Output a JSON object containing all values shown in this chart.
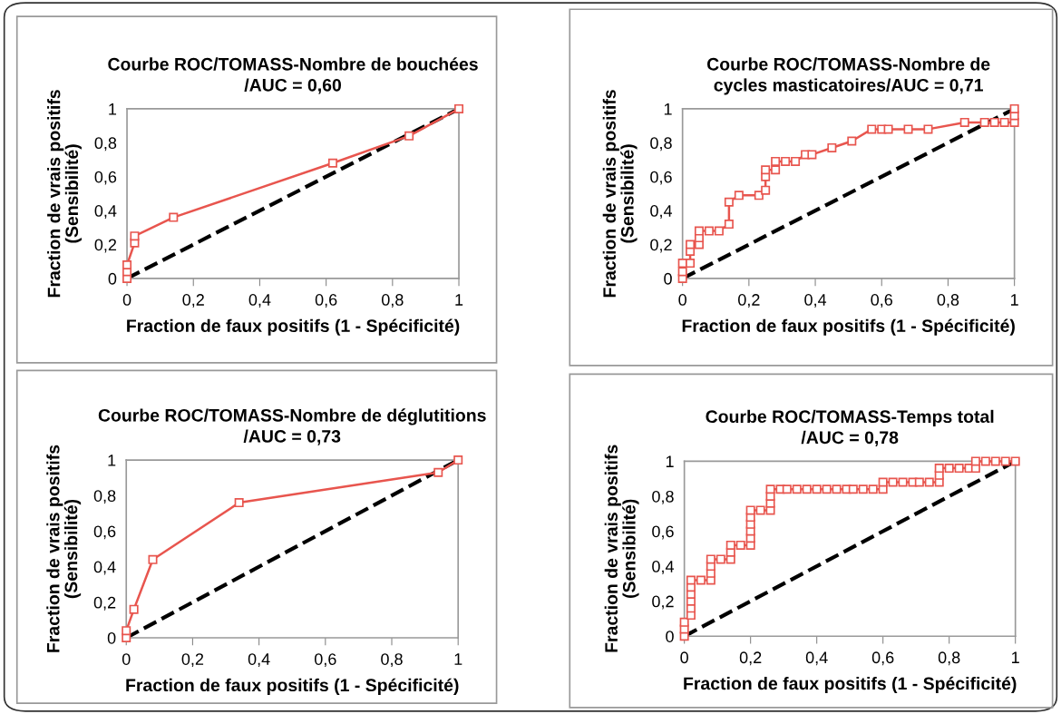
{
  "chart_data": [
    {
      "type": "line",
      "title": "Courbe ROC/TOMASS-Nombre de bouchées\n/AUC = 0,60",
      "xlabel": "Fraction de faux positifs (1 - Spécificité)",
      "ylabel": "Fraction de vrais positifs\n(Sensibilité)",
      "xlim": [
        0,
        1
      ],
      "ylim": [
        0,
        1
      ],
      "xticks": [
        0,
        {
          "value": 0.2,
          "label": "0,2"
        },
        {
          "value": 0.4,
          "label": "0,4"
        },
        {
          "value": 0.6,
          "label": "0,6"
        },
        {
          "value": 0.8,
          "label": "0,8"
        },
        1
      ],
      "yticks": [
        0,
        {
          "value": 0.2,
          "label": "0,2"
        },
        {
          "value": 0.4,
          "label": "0,4"
        },
        {
          "value": 0.6,
          "label": "0,6"
        },
        {
          "value": 0.8,
          "label": "0,8"
        },
        1
      ],
      "grid": false,
      "series": [
        {
          "color": "#e8554e",
          "marker": "square",
          "line_style": "solid",
          "x": [
            0,
            0,
            0,
            0.023,
            0.023,
            0.14,
            0.62,
            0.85,
            1
          ],
          "values": [
            0,
            0.04,
            0.08,
            0.21,
            0.25,
            0.36,
            0.68,
            0.84,
            1
          ]
        },
        {
          "color": "#000000",
          "marker": "none",
          "line_style": "dashed",
          "x": [
            0,
            1
          ],
          "values": [
            0,
            1
          ]
        }
      ]
    },
    {
      "type": "line",
      "title": "Courbe ROC/TOMASS-Nombre de\ncycles masticatoires/AUC = 0,71",
      "xlabel": "Fraction de faux positifs (1 - Spécificité)",
      "ylabel": "Fraction de vrais positifs\n(Sensibilité)",
      "xlim": [
        0,
        1
      ],
      "ylim": [
        0,
        1
      ],
      "xticks": [
        0,
        {
          "value": 0.2,
          "label": "0,2"
        },
        {
          "value": 0.4,
          "label": "0,4"
        },
        {
          "value": 0.6,
          "label": "0,6"
        },
        {
          "value": 0.8,
          "label": "0,8"
        },
        1
      ],
      "yticks": [
        0,
        {
          "value": 0.2,
          "label": "0,2"
        },
        {
          "value": 0.4,
          "label": "0,4"
        },
        {
          "value": 0.6,
          "label": "0,6"
        },
        {
          "value": 0.8,
          "label": "0,8"
        },
        1
      ],
      "grid": false,
      "series": [
        {
          "color": "#e8554e",
          "marker": "square",
          "line_style": "solid",
          "x": [
            0,
            0,
            0,
            0.023,
            0.023,
            0.023,
            0.05,
            0.05,
            0.05,
            0.08,
            0.11,
            0.14,
            0.14,
            0.17,
            0.23,
            0.25,
            0.25,
            0.25,
            0.28,
            0.28,
            0.31,
            0.34,
            0.37,
            0.39,
            0.45,
            0.51,
            0.57,
            0.6,
            0.62,
            0.68,
            0.74,
            0.85,
            0.91,
            0.94,
            0.97,
            1,
            1,
            1
          ],
          "values": [
            0,
            0.04,
            0.09,
            0.09,
            0.16,
            0.2,
            0.2,
            0.24,
            0.28,
            0.28,
            0.28,
            0.32,
            0.45,
            0.49,
            0.49,
            0.52,
            0.6,
            0.64,
            0.64,
            0.69,
            0.69,
            0.69,
            0.73,
            0.73,
            0.77,
            0.81,
            0.88,
            0.88,
            0.88,
            0.88,
            0.88,
            0.92,
            0.92,
            0.92,
            0.92,
            0.92,
            0.96,
            1
          ]
        },
        {
          "color": "#000000",
          "marker": "none",
          "line_style": "dashed",
          "x": [
            0,
            1
          ],
          "values": [
            0,
            1
          ]
        }
      ]
    },
    {
      "type": "line",
      "title": "Courbe ROC/TOMASS-Nombre de déglutitions\n/AUC = 0,73",
      "xlabel": "Fraction de faux positifs (1 - Spécificité)",
      "ylabel": "Fraction de vrais positifs\n(Sensibilité)",
      "xlim": [
        0,
        1
      ],
      "ylim": [
        0,
        1
      ],
      "xticks": [
        0,
        {
          "value": 0.2,
          "label": "0,2"
        },
        {
          "value": 0.4,
          "label": "0,4"
        },
        {
          "value": 0.6,
          "label": "0,6"
        },
        {
          "value": 0.8,
          "label": "0,8"
        },
        1
      ],
      "yticks": [
        0,
        {
          "value": 0.2,
          "label": "0,2"
        },
        {
          "value": 0.4,
          "label": "0,4"
        },
        {
          "value": 0.6,
          "label": "0,6"
        },
        {
          "value": 0.8,
          "label": "0,8"
        },
        1
      ],
      "grid": false,
      "series": [
        {
          "color": "#e8554e",
          "marker": "square",
          "line_style": "solid",
          "x": [
            0,
            0,
            0.023,
            0.08,
            0.34,
            0.94,
            1
          ],
          "values": [
            0,
            0.04,
            0.16,
            0.44,
            0.76,
            0.93,
            1
          ]
        },
        {
          "color": "#000000",
          "marker": "none",
          "line_style": "dashed",
          "x": [
            0,
            1
          ],
          "values": [
            0,
            1
          ]
        }
      ]
    },
    {
      "type": "line",
      "title": "Courbe ROC/TOMASS-Temps total\n/AUC = 0,78",
      "xlabel": "Fraction de faux positifs (1 - Spécificité)",
      "ylabel": "Fraction de vrais positifs\n(Sensibilité)",
      "xlim": [
        0,
        1
      ],
      "ylim": [
        0,
        1
      ],
      "xticks": [
        0,
        {
          "value": 0.2,
          "label": "0,2"
        },
        {
          "value": 0.4,
          "label": "0,4"
        },
        {
          "value": 0.6,
          "label": "0,6"
        },
        {
          "value": 0.8,
          "label": "0,8"
        },
        1
      ],
      "yticks": [
        0,
        {
          "value": 0.2,
          "label": "0,2"
        },
        {
          "value": 0.4,
          "label": "0,4"
        },
        {
          "value": 0.6,
          "label": "0,6"
        },
        {
          "value": 0.8,
          "label": "0,8"
        },
        1
      ],
      "grid": false,
      "series": [
        {
          "color": "#e8554e",
          "marker": "square",
          "line_style": "solid",
          "x": [
            0,
            0,
            0,
            0.02,
            0.02,
            0.02,
            0.02,
            0.02,
            0.02,
            0.05,
            0.08,
            0.08,
            0.08,
            0.08,
            0.11,
            0.14,
            0.14,
            0.14,
            0.17,
            0.2,
            0.2,
            0.2,
            0.2,
            0.2,
            0.2,
            0.23,
            0.26,
            0.26,
            0.26,
            0.26,
            0.29,
            0.31,
            0.34,
            0.37,
            0.4,
            0.43,
            0.46,
            0.49,
            0.51,
            0.54,
            0.57,
            0.6,
            0.6,
            0.63,
            0.66,
            0.69,
            0.71,
            0.74,
            0.77,
            0.77,
            0.77,
            0.8,
            0.83,
            0.86,
            0.88,
            0.88,
            0.91,
            0.94,
            0.97,
            1
          ],
          "values": [
            0,
            0.04,
            0.08,
            0.12,
            0.16,
            0.2,
            0.24,
            0.28,
            0.32,
            0.32,
            0.32,
            0.36,
            0.4,
            0.44,
            0.44,
            0.44,
            0.48,
            0.52,
            0.52,
            0.52,
            0.56,
            0.6,
            0.64,
            0.68,
            0.72,
            0.72,
            0.72,
            0.76,
            0.8,
            0.84,
            0.84,
            0.84,
            0.84,
            0.84,
            0.84,
            0.84,
            0.84,
            0.84,
            0.84,
            0.84,
            0.84,
            0.84,
            0.88,
            0.88,
            0.88,
            0.88,
            0.88,
            0.88,
            0.88,
            0.92,
            0.96,
            0.96,
            0.96,
            0.96,
            0.96,
            1,
            1,
            1,
            1,
            1
          ]
        },
        {
          "color": "#000000",
          "marker": "none",
          "line_style": "dashed",
          "x": [
            0,
            1
          ],
          "values": [
            0,
            1
          ]
        }
      ]
    }
  ]
}
